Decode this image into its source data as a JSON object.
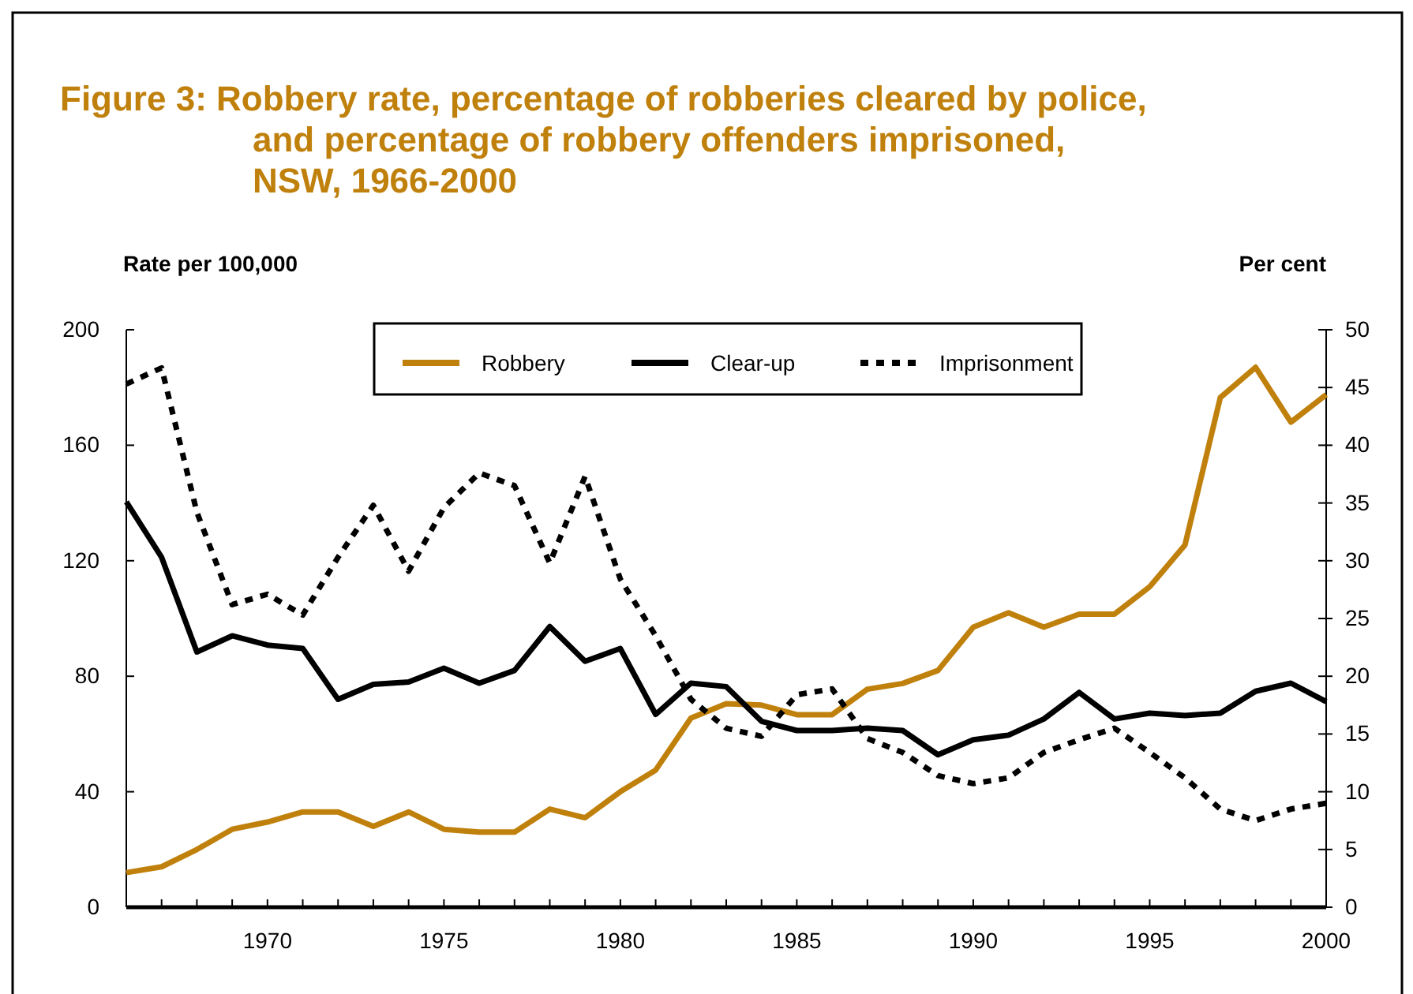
{
  "chart_data": {
    "type": "line",
    "title": "Figure 3: Robbery rate, percentage of robberies cleared by police,\nand percentage of robbery offenders imprisoned,\nNSW, 1966-2000",
    "ylabel": "Rate per 100,000",
    "y2label": "Per cent",
    "x": [
      1966,
      1967,
      1968,
      1969,
      1970,
      1971,
      1972,
      1973,
      1974,
      1975,
      1976,
      1977,
      1978,
      1979,
      1980,
      1981,
      1982,
      1983,
      1984,
      1985,
      1986,
      1987,
      1988,
      1989,
      1990,
      1991,
      1992,
      1993,
      1994,
      1995,
      1996,
      1997,
      1998,
      1999,
      2000
    ],
    "xlim": [
      1966,
      2000
    ],
    "xticks": [
      {
        "value": 1966,
        "label": null
      },
      {
        "value": 1967,
        "label": null
      },
      {
        "value": 1968,
        "label": null
      },
      {
        "value": 1969,
        "label": null
      },
      1970,
      {
        "value": 1971,
        "label": null
      },
      {
        "value": 1972,
        "label": null
      },
      {
        "value": 1973,
        "label": null
      },
      {
        "value": 1974,
        "label": null
      },
      1975,
      {
        "value": 1976,
        "label": null
      },
      {
        "value": 1977,
        "label": null
      },
      {
        "value": 1978,
        "label": null
      },
      {
        "value": 1979,
        "label": null
      },
      1980,
      {
        "value": 1981,
        "label": null
      },
      {
        "value": 1982,
        "label": null
      },
      {
        "value": 1983,
        "label": null
      },
      {
        "value": 1984,
        "label": null
      },
      1985,
      {
        "value": 1986,
        "label": null
      },
      {
        "value": 1987,
        "label": null
      },
      {
        "value": 1988,
        "label": null
      },
      {
        "value": 1989,
        "label": null
      },
      1990,
      {
        "value": 1991,
        "label": null
      },
      {
        "value": 1992,
        "label": null
      },
      {
        "value": 1993,
        "label": null
      },
      {
        "value": 1994,
        "label": null
      },
      1995,
      {
        "value": 1996,
        "label": null
      },
      {
        "value": 1997,
        "label": null
      },
      {
        "value": 1998,
        "label": null
      },
      {
        "value": 1999,
        "label": null
      },
      2000
    ],
    "ylim": [
      0,
      200
    ],
    "yticks": [
      0,
      40,
      80,
      120,
      160,
      200
    ],
    "y2lim": [
      0,
      50
    ],
    "y2ticks": [
      0,
      5,
      10,
      15,
      20,
      25,
      30,
      35,
      40,
      45,
      50
    ],
    "legend": "top",
    "grid": false,
    "series": [
      {
        "name": "Robbery",
        "color": "#c0800c",
        "line_style": "solid",
        "values": [
          12,
          14,
          20,
          27,
          29.5,
          33,
          33,
          28,
          33,
          27,
          26,
          26,
          34,
          31,
          40,
          47.5,
          65.5,
          70.5,
          70,
          66.7,
          66.7,
          75.5,
          77.5,
          82,
          97,
          102,
          97,
          101.5,
          101.5,
          111,
          125.5,
          176.5,
          187,
          168,
          177.5
        ]
      },
      {
        "name": "Clear-up",
        "color": "#000000",
        "axis": "y2",
        "line_style": "solid",
        "values": [
          35.1,
          30.3,
          22.1,
          23.5,
          22.7,
          22.4,
          18,
          19.3,
          19.5,
          20.7,
          19.4,
          20.5,
          24.3,
          21.3,
          22.4,
          16.7,
          19.4,
          19.1,
          16.1,
          15.3,
          15.3,
          15.5,
          15.3,
          13.2,
          14.5,
          14.9,
          16.3,
          18.6,
          16.3,
          16.8,
          16.6,
          16.8,
          18.7,
          19.4,
          17.8
        ]
      },
      {
        "name": "Imprisonment",
        "color": "#000000",
        "axis": "y2",
        "line_style": "dotted",
        "values": [
          45.3,
          46.7,
          34.2,
          26.2,
          27.1,
          25.3,
          30.3,
          34.8,
          29.1,
          34.6,
          37.6,
          36.5,
          29.8,
          37.3,
          28.4,
          23.5,
          18,
          15.5,
          14.8,
          18.4,
          18.9,
          14.6,
          13.4,
          11.4,
          10.7,
          11.2,
          13.4,
          14.5,
          15.5,
          13.4,
          11.2,
          8.5,
          7.5,
          8.5,
          9
        ]
      }
    ]
  }
}
